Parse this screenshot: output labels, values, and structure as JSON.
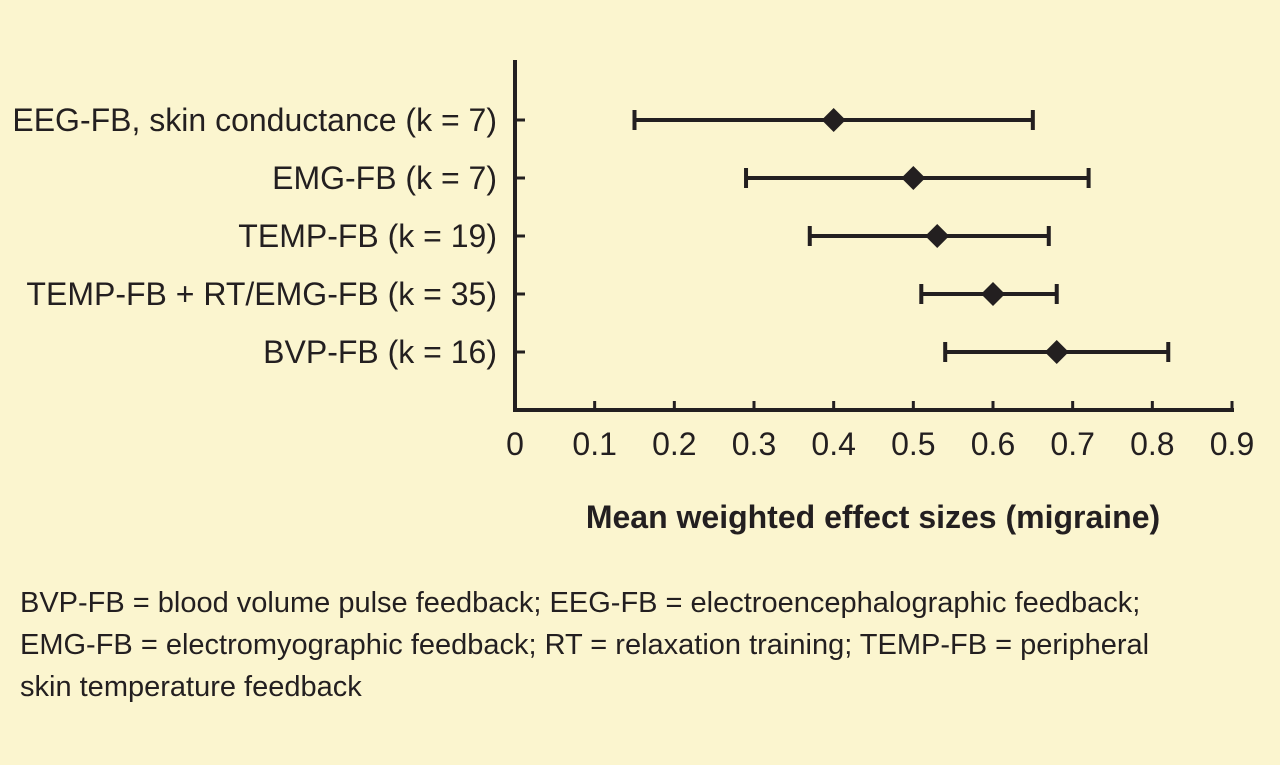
{
  "chart_data": {
    "type": "forest",
    "xlabel": "Mean weighted effect sizes (migraine)",
    "xlim": [
      0,
      0.9
    ],
    "xticks": [
      0,
      0.1,
      0.2,
      0.3,
      0.4,
      0.5,
      0.6,
      0.7,
      0.8,
      0.9
    ],
    "xtick_labels": [
      "0",
      "0.1",
      "0.2",
      "0.3",
      "0.4",
      "0.5",
      "0.6",
      "0.7",
      "0.8",
      "0.9"
    ],
    "grid": false,
    "categories": [
      "EEG-FB, skin conductance (k = 7)",
      "EMG-FB (k = 7)",
      "TEMP-FB (k = 19)",
      "TEMP-FB + RT/EMG-FB (k = 35)",
      "BVP-FB (k = 16)"
    ],
    "points": [
      {
        "label": "EEG-FB, skin conductance (k = 7)",
        "estimate": 0.4,
        "lower": 0.15,
        "upper": 0.65
      },
      {
        "label": "EMG-FB (k = 7)",
        "estimate": 0.5,
        "lower": 0.29,
        "upper": 0.72
      },
      {
        "label": "TEMP-FB (k = 19)",
        "estimate": 0.53,
        "lower": 0.37,
        "upper": 0.67
      },
      {
        "label": "TEMP-FB + RT/EMG-FB (k = 35)",
        "estimate": 0.6,
        "lower": 0.51,
        "upper": 0.68
      },
      {
        "label": "BVP-FB (k = 16)",
        "estimate": 0.68,
        "lower": 0.54,
        "upper": 0.82
      }
    ]
  },
  "colors": {
    "background": "#fbf5cf",
    "ink": "#231f20"
  },
  "footnote": {
    "lines": [
      "BVP-FB = blood volume pulse feedback; EEG-FB = electroencephalographic feedback;",
      "EMG-FB = electromyographic feedback; RT = relaxation training; TEMP-FB = peripheral",
      "skin temperature feedback"
    ]
  }
}
